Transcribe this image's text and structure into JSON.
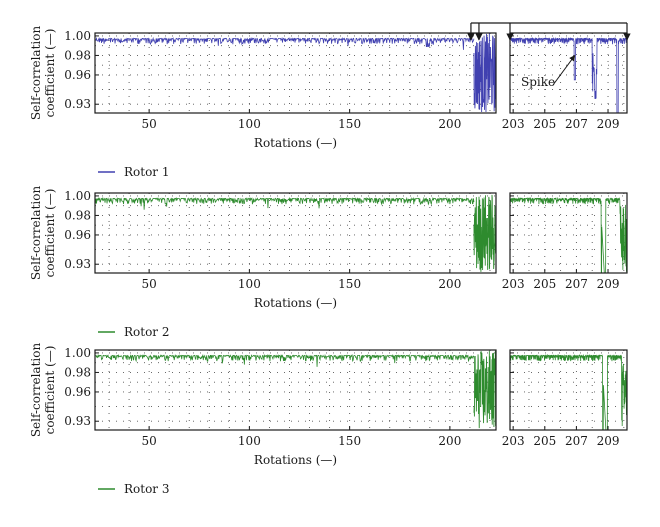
{
  "chart_data": [
    {
      "type": "line",
      "panel": "rotor-1",
      "series": [
        {
          "name": "Rotor 1",
          "color": "#4040b0"
        }
      ],
      "ylabel": [
        "Self-correlation",
        "coefficient (—)"
      ],
      "xlabel": "Rotations (—)",
      "yticks": [
        "1.00",
        "0.98",
        "0.96",
        "0.93"
      ],
      "ytick_values": [
        1.0,
        0.98,
        0.96,
        0.93
      ],
      "ylim": [
        0.921,
        1.003
      ],
      "main_xlim": [
        23,
        223
      ],
      "main_xticks": [
        50,
        100,
        150,
        200
      ],
      "zoom_xlim": [
        202.8,
        210.2
      ],
      "zoom_xticks": [
        203,
        205,
        207,
        209
      ],
      "annotation": "Spike",
      "zoom_indicator": true,
      "main_drop_x": 212,
      "zoom_drop_x": [
        206.9,
        208.2,
        209.6
      ],
      "grid": true,
      "legend_position": "below"
    },
    {
      "type": "line",
      "panel": "rotor-2",
      "series": [
        {
          "name": "Rotor 2",
          "color": "#2e8b2e"
        }
      ],
      "ylabel": [
        "Self-correlation",
        "coefficient (—)"
      ],
      "xlabel": "Rotations (—)",
      "yticks": [
        "1.00",
        "0.98",
        "0.96",
        "0.93"
      ],
      "ytick_values": [
        1.0,
        0.98,
        0.96,
        0.93
      ],
      "ylim": [
        0.921,
        1.003
      ],
      "main_xlim": [
        23,
        223
      ],
      "main_xticks": [
        50,
        100,
        150,
        200
      ],
      "zoom_xlim": [
        202.8,
        210.2
      ],
      "zoom_xticks": [
        203,
        205,
        207,
        209
      ],
      "main_drop_x": 212,
      "zoom_drop_x": [
        208.6,
        209.8
      ],
      "grid": true,
      "legend_position": "below"
    },
    {
      "type": "line",
      "panel": "rotor-3",
      "series": [
        {
          "name": "Rotor 3",
          "color": "#2e8b2e"
        }
      ],
      "ylabel": [
        "Self-correlation",
        "coefficient (—)"
      ],
      "xlabel": "Rotations (—)",
      "yticks": [
        "1.00",
        "0.98",
        "0.96",
        "0.93"
      ],
      "ytick_values": [
        1.0,
        0.98,
        0.96,
        0.93
      ],
      "ylim": [
        0.921,
        1.003
      ],
      "main_xlim": [
        23,
        223
      ],
      "main_xticks": [
        50,
        100,
        150,
        200
      ],
      "zoom_xlim": [
        202.8,
        210.2
      ],
      "zoom_xticks": [
        203,
        205,
        207,
        209
      ],
      "main_drop_x": 212,
      "zoom_drop_x": [
        208.7,
        209.9
      ],
      "grid": true,
      "legend_position": "below"
    }
  ]
}
